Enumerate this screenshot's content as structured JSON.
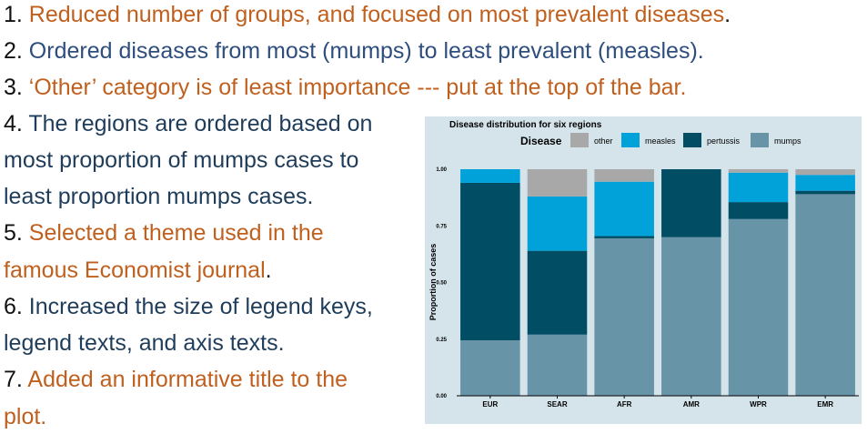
{
  "notes": [
    {
      "num": "1.",
      "parts": [
        " Reduced number of groups, and focused on most prevalent  diseases",
        "."
      ]
    },
    {
      "num": "2.",
      "parts": [
        " Ordered diseases from most (mumps) to least prevalent (measles)",
        "."
      ]
    },
    {
      "num": "3.",
      "parts": [
        " ‘Other’ category is of least importance --- put at the top of the bar",
        "."
      ]
    },
    {
      "num": "4.",
      "parts": [
        " The regions are ordered based on",
        "most proportion of mumps cases to",
        "least proportion mumps cases."
      ]
    },
    {
      "num": "5.",
      "parts": [
        " Selected a theme used in the",
        "famous Economist journal",
        "."
      ]
    },
    {
      "num": "6.",
      "parts": [
        " Increased the size of legend keys,",
        "legend texts, and axis texts."
      ]
    },
    {
      "num": "7.",
      "parts": [
        " Added an informative title to the",
        "plot."
      ]
    }
  ],
  "chart_data": {
    "type": "bar",
    "stacked": true,
    "title": "Disease distribution for six regions",
    "legend_title": "Disease",
    "legend_position": "top",
    "xlabel": "",
    "ylabel": "Proportion of cases",
    "ylim": [
      0,
      1
    ],
    "yticks": [
      "0.00",
      "0.25",
      "0.50",
      "0.75",
      "1.00"
    ],
    "categories": [
      "EUR",
      "SEAR",
      "AFR",
      "AMR",
      "WPR",
      "EMR"
    ],
    "series": [
      {
        "name": "mumps",
        "color": "#6794a7",
        "values": [
          0.245,
          0.27,
          0.695,
          0.7,
          0.78,
          0.89
        ]
      },
      {
        "name": "pertussis",
        "color": "#014d64",
        "values": [
          0.695,
          0.37,
          0.01,
          0.3,
          0.075,
          0.015
        ]
      },
      {
        "name": "measles",
        "color": "#01a2d9",
        "values": [
          0.06,
          0.24,
          0.24,
          0.0,
          0.13,
          0.07
        ]
      },
      {
        "name": "other",
        "color": "#a8a8a8",
        "values": [
          0.0,
          0.12,
          0.055,
          0.0,
          0.015,
          0.025
        ]
      }
    ],
    "legend_order": [
      "other",
      "measles",
      "pertussis",
      "mumps"
    ],
    "grid": false
  }
}
